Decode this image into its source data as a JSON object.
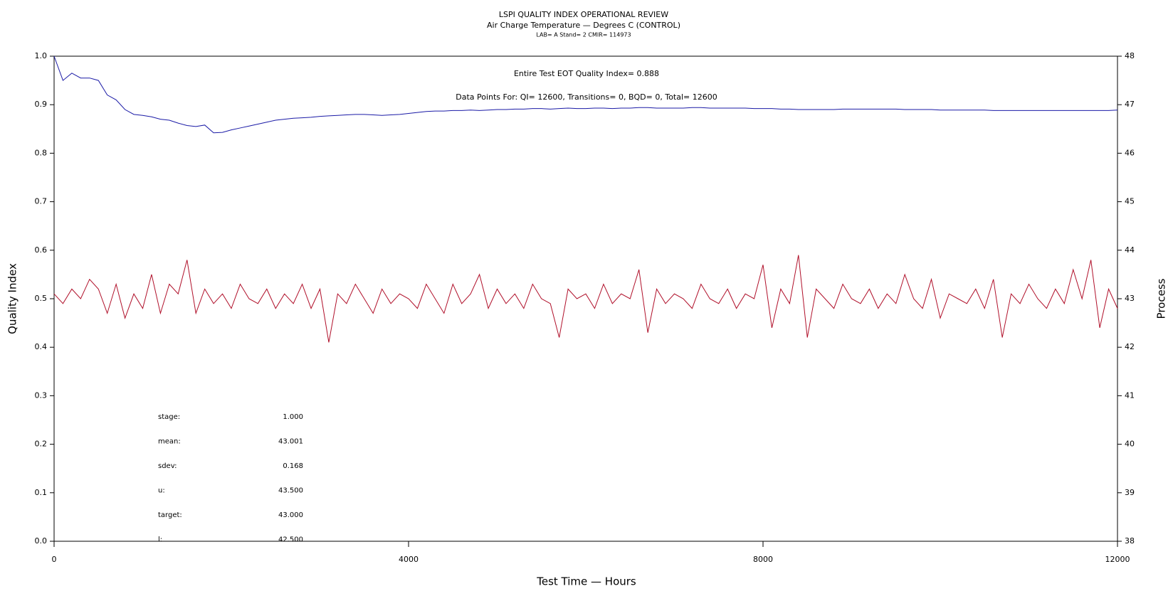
{
  "chart_data": {
    "type": "line",
    "title": "LSPI QUALITY INDEX OPERATIONAL REVIEW",
    "subtitle": "Air Charge Temperature — Degrees C (CONTROL)",
    "subtitle2": "LAB= A Stand= 2 CMIR= 114973",
    "annotations": [
      "Entire Test EOT Quality Index=   0.888",
      "Data Points For: QI= 12600, Transitions=     0, BQD=     0, Total= 12600"
    ],
    "stats": [
      [
        "stage:",
        "1.000"
      ],
      [
        "mean:",
        "43.001"
      ],
      [
        "sdev:",
        "0.168"
      ],
      [
        "u:",
        "43.500"
      ],
      [
        "target:",
        "43.000"
      ],
      [
        "l:",
        "42.500"
      ]
    ],
    "x_label": "Test Time — Hours",
    "y_label": "Quality Index",
    "y2_label": "Process",
    "xlim": [
      0,
      12000
    ],
    "xticks": [
      0,
      4000,
      8000,
      12000
    ],
    "ylim": [
      0,
      1
    ],
    "yticks": [
      {
        "value": 0,
        "label": "0.0"
      },
      0.1,
      0.2,
      0.3,
      0.4,
      0.5,
      0.6,
      0.7,
      0.8,
      0.9,
      {
        "value": 1,
        "label": "1.0"
      }
    ],
    "y2lim": [
      38,
      48
    ],
    "y2ticks": [
      38,
      39,
      40,
      41,
      42,
      43,
      44,
      45,
      46,
      47,
      48
    ],
    "x": [
      0,
      100,
      200,
      300,
      400,
      500,
      600,
      700,
      800,
      900,
      1000,
      1100,
      1200,
      1300,
      1400,
      1500,
      1600,
      1700,
      1800,
      1900,
      2000,
      2100,
      2200,
      2300,
      2400,
      2500,
      2600,
      2700,
      2800,
      2900,
      3000,
      3100,
      3200,
      3300,
      3400,
      3500,
      3600,
      3700,
      3800,
      3900,
      4000,
      4100,
      4200,
      4300,
      4400,
      4500,
      4600,
      4700,
      4800,
      4900,
      5000,
      5100,
      5200,
      5300,
      5400,
      5500,
      5600,
      5700,
      5800,
      5900,
      6000,
      6100,
      6200,
      6300,
      6400,
      6500,
      6600,
      6700,
      6800,
      6900,
      7000,
      7100,
      7200,
      7300,
      7400,
      7500,
      7600,
      7700,
      7800,
      7900,
      8000,
      8100,
      8200,
      8300,
      8400,
      8500,
      8600,
      8700,
      8800,
      8900,
      9000,
      9100,
      9200,
      9300,
      9400,
      9500,
      9600,
      9700,
      9800,
      9900,
      10000,
      10100,
      10200,
      10300,
      10400,
      10500,
      10600,
      10700,
      10800,
      10900,
      11000,
      11100,
      11200,
      11300,
      11400,
      11500,
      11600,
      11700,
      11800,
      11900,
      12000
    ],
    "series": [
      {
        "color": "#1a1aa6",
        "axis": "y",
        "values": [
          1.0,
          0.95,
          0.965,
          0.955,
          0.955,
          0.95,
          0.92,
          0.91,
          0.89,
          0.88,
          0.878,
          0.875,
          0.87,
          0.868,
          0.862,
          0.857,
          0.855,
          0.858,
          0.842,
          0.843,
          0.848,
          0.852,
          0.856,
          0.86,
          0.864,
          0.868,
          0.87,
          0.872,
          0.873,
          0.874,
          0.876,
          0.877,
          0.878,
          0.879,
          0.88,
          0.88,
          0.879,
          0.878,
          0.879,
          0.88,
          0.882,
          0.884,
          0.886,
          0.887,
          0.887,
          0.888,
          0.888,
          0.889,
          0.888,
          0.889,
          0.89,
          0.89,
          0.891,
          0.891,
          0.892,
          0.892,
          0.891,
          0.892,
          0.893,
          0.892,
          0.892,
          0.893,
          0.893,
          0.892,
          0.893,
          0.893,
          0.894,
          0.894,
          0.893,
          0.893,
          0.893,
          0.893,
          0.894,
          0.894,
          0.893,
          0.893,
          0.893,
          0.893,
          0.893,
          0.892,
          0.892,
          0.892,
          0.891,
          0.891,
          0.89,
          0.89,
          0.89,
          0.89,
          0.89,
          0.891,
          0.891,
          0.891,
          0.891,
          0.891,
          0.891,
          0.891,
          0.89,
          0.89,
          0.89,
          0.89,
          0.889,
          0.889,
          0.889,
          0.889,
          0.889,
          0.889,
          0.888,
          0.888,
          0.888,
          0.888,
          0.888,
          0.888,
          0.888,
          0.888,
          0.888,
          0.888,
          0.888,
          0.888,
          0.888,
          0.888,
          0.889
        ]
      },
      {
        "color": "#b0102a",
        "axis": "y2",
        "values": [
          43.1,
          42.9,
          43.2,
          43.0,
          43.4,
          43.2,
          42.7,
          43.3,
          42.6,
          43.1,
          42.8,
          43.5,
          42.7,
          43.3,
          43.1,
          43.8,
          42.7,
          43.2,
          42.9,
          43.1,
          42.8,
          43.3,
          43.0,
          42.9,
          43.2,
          42.8,
          43.1,
          42.9,
          43.3,
          42.8,
          43.2,
          42.1,
          43.1,
          42.9,
          43.3,
          43.0,
          42.7,
          43.2,
          42.9,
          43.1,
          43.0,
          42.8,
          43.3,
          43.0,
          42.7,
          43.3,
          42.9,
          43.1,
          43.5,
          42.8,
          43.2,
          42.9,
          43.1,
          42.8,
          43.3,
          43.0,
          42.9,
          42.2,
          43.2,
          43.0,
          43.1,
          42.8,
          43.3,
          42.9,
          43.1,
          43.0,
          43.6,
          42.3,
          43.2,
          42.9,
          43.1,
          43.0,
          42.8,
          43.3,
          43.0,
          42.9,
          43.2,
          42.8,
          43.1,
          43.0,
          43.7,
          42.4,
          43.2,
          42.9,
          43.9,
          42.2,
          43.2,
          43.0,
          42.8,
          43.3,
          43.0,
          42.9,
          43.2,
          42.8,
          43.1,
          42.9,
          43.5,
          43.0,
          42.8,
          43.4,
          42.6,
          43.1,
          43.0,
          42.9,
          43.2,
          42.8,
          43.4,
          42.2,
          43.1,
          42.9,
          43.3,
          43.0,
          42.8,
          43.2,
          42.9,
          43.6,
          43.0,
          43.8,
          42.4,
          43.2,
          42.8
        ]
      }
    ]
  }
}
